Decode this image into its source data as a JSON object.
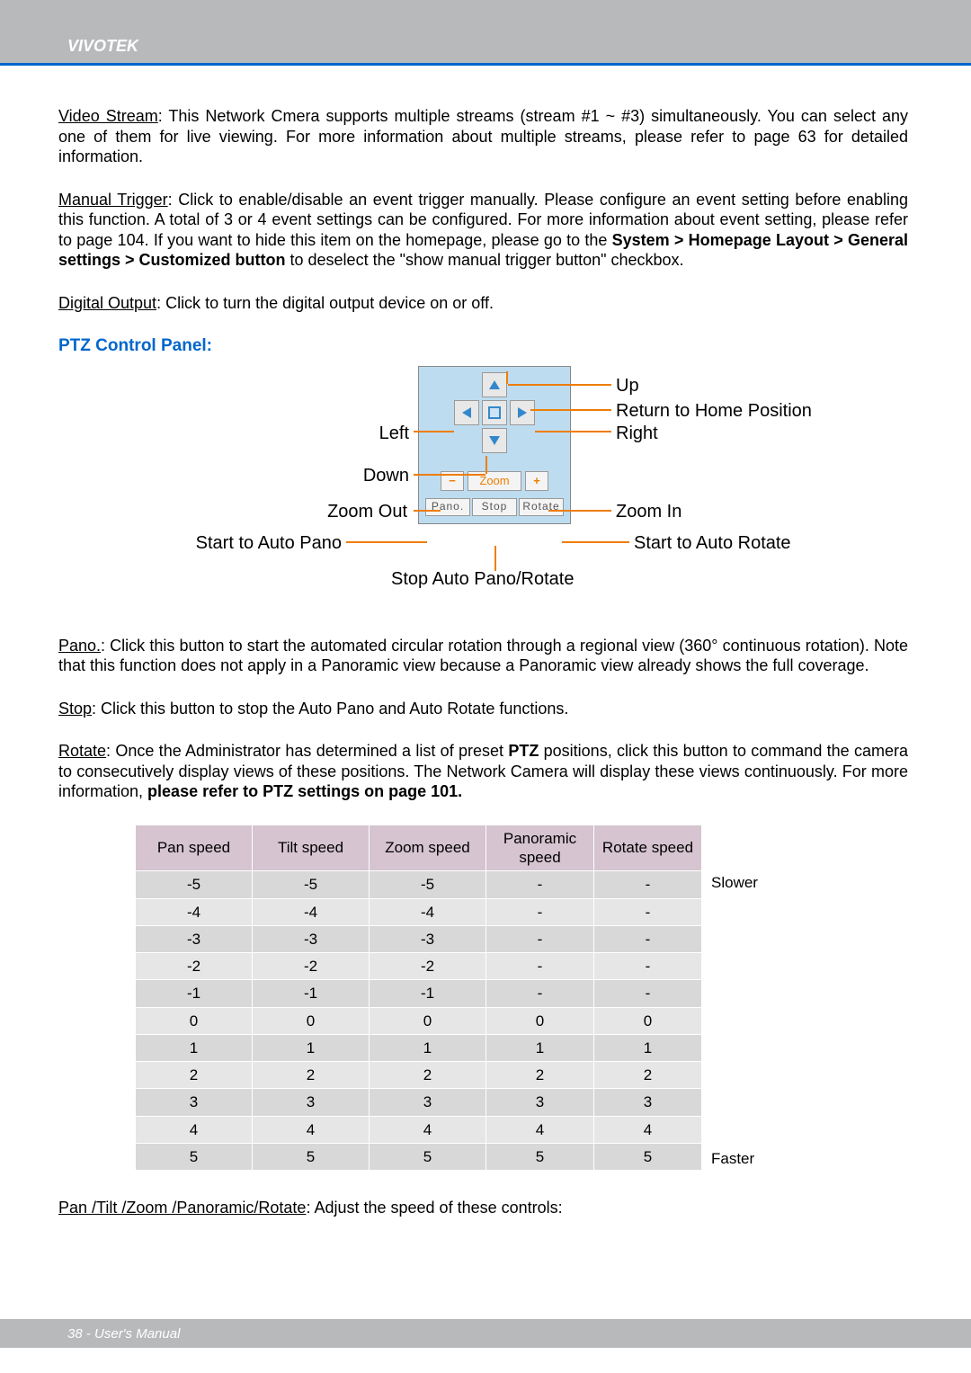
{
  "header": {
    "brand": "VIVOTEK"
  },
  "sections": {
    "video_stream": {
      "label": "Video Stream",
      "text": ": This Network Cmera supports multiple streams (stream #1 ~ #3) simultaneously. You can select any one of them for live viewing. For more information about multiple streams, please refer to page 63 for detailed information."
    },
    "manual_trigger": {
      "label": "Manual Trigger",
      "text_a": ": Click to enable/disable an event trigger manually. Please configure an event setting before enabling this function. A total of 3 or 4 event settings can be configured. For more information about event setting, please refer to page 104. If you want to hide this item on the homepage, please go to the ",
      "bold": "System > Homepage Layout > General settings > Customized button",
      "text_b": " to deselect the \"show manual trigger button\" checkbox."
    },
    "digital_output": {
      "label": "Digital Output",
      "text": ": Click to turn the digital output device on or off."
    },
    "ptz_title": "PTZ Control Panel:",
    "callouts": {
      "up": "Up",
      "home": "Return to Home Position",
      "left": "Left",
      "right": "Right",
      "down": "Down",
      "zoom_out": "Zoom Out",
      "zoom_in": "Zoom In",
      "auto_pano": "Start to Auto Pano",
      "auto_rotate": "Start to Auto Rotate",
      "stop": "Stop Auto Pano/Rotate"
    },
    "panel": {
      "zoom_minus": "−",
      "zoom_label": "Zoom",
      "zoom_plus": "+",
      "pano": "Pano.",
      "stop": "Stop",
      "rotate": "Rotate"
    },
    "pano": {
      "label": "Pano.",
      "text": ": Click this button to start the automated circular rotation through a regional view (360° continuous rotation). Note that this function does not apply in a Panoramic view because a Panoramic view already shows the full coverage."
    },
    "stop_desc": {
      "label": "Stop",
      "text": ": Click this button to stop the Auto Pano and Auto Rotate functions."
    },
    "rotate_desc": {
      "label": "Rotate",
      "text_a": ": Once the Administrator has determined a list of preset ",
      "bold1": "PTZ",
      "text_b": " positions, click this button to command the camera to consecutively display views of these positions. The Network Camera will display these views continuously. For more information, ",
      "bold2": "please refer to PTZ settings on page 101."
    },
    "speed_note": {
      "label": "Pan /Tilt /Zoom /Panoramic/Rotate",
      "text": ": Adjust the speed of these controls:"
    }
  },
  "speed_table": {
    "headers": [
      "Pan speed",
      "Tilt speed",
      "Zoom speed",
      "Panoramic speed",
      "Rotate speed"
    ],
    "side_top": "Slower",
    "side_bot": "Faster",
    "rows": [
      [
        "-5",
        "-5",
        "-5",
        "-",
        "-"
      ],
      [
        "-4",
        "-4",
        "-4",
        "-",
        "-"
      ],
      [
        "-3",
        "-3",
        "-3",
        "-",
        "-"
      ],
      [
        "-2",
        "-2",
        "-2",
        "-",
        "-"
      ],
      [
        "-1",
        "-1",
        "-1",
        "-",
        "-"
      ],
      [
        "0",
        "0",
        "0",
        "0",
        "0"
      ],
      [
        "1",
        "1",
        "1",
        "1",
        "1"
      ],
      [
        "2",
        "2",
        "2",
        "2",
        "2"
      ],
      [
        "3",
        "3",
        "3",
        "3",
        "3"
      ],
      [
        "4",
        "4",
        "4",
        "4",
        "4"
      ],
      [
        "5",
        "5",
        "5",
        "5",
        "5"
      ]
    ]
  },
  "footer": {
    "text": "38 - User's Manual"
  },
  "colors": {
    "header_bg": "#b8b9bb",
    "accent_blue": "#0066cc",
    "panel_bg": "#bedcef",
    "callout_line": "#ee7d08",
    "zoom_text": "#ea7e00",
    "table_header_bg": "#d6c4d0",
    "table_row_bg": "#e6e6e7",
    "table_row_alt": "#d8d8d9"
  }
}
